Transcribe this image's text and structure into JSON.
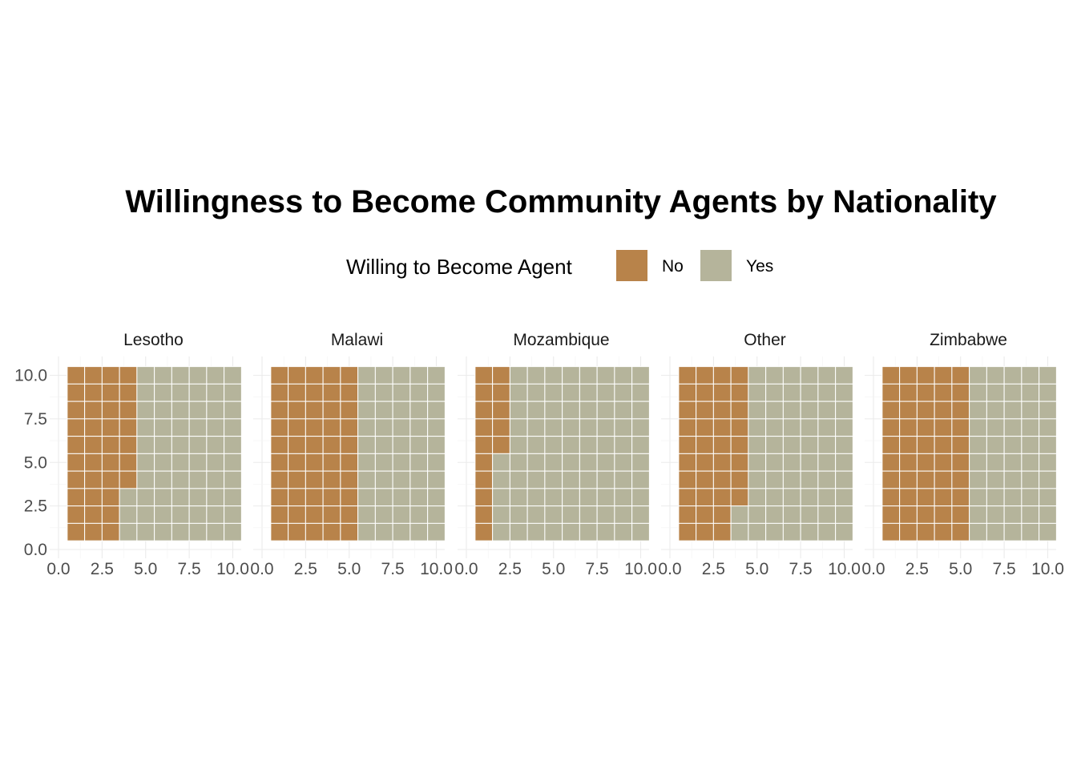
{
  "chart_data": {
    "type": "heatmap",
    "subtype": "waffle",
    "title": "Willingness to Become Community Agents by Nationality",
    "legend": {
      "title": "Willing to Become Agent",
      "position": "top",
      "items": [
        {
          "label": "No",
          "color": "#B8834A"
        },
        {
          "label": "Yes",
          "color": "#B5B49B"
        }
      ]
    },
    "xlim": [
      0,
      10
    ],
    "ylim": [
      0,
      10
    ],
    "x_ticks": [
      "0.0",
      "2.5",
      "5.0",
      "7.5",
      "10.0"
    ],
    "y_ticks": [
      "0.0",
      "2.5",
      "5.0",
      "7.5",
      "10.0"
    ],
    "grid": true,
    "grid_cells": 100,
    "fill_order": "column-wise from left, top to bottom",
    "panels": [
      {
        "name": "Lesotho",
        "no_count": 37,
        "yes_count": 63
      },
      {
        "name": "Malawi",
        "no_count": 50,
        "yes_count": 50
      },
      {
        "name": "Mozambique",
        "no_count": 15,
        "yes_count": 85
      },
      {
        "name": "Other",
        "no_count": 38,
        "yes_count": 62
      },
      {
        "name": "Zimbabwe",
        "no_count": 50,
        "yes_count": 50
      }
    ]
  }
}
